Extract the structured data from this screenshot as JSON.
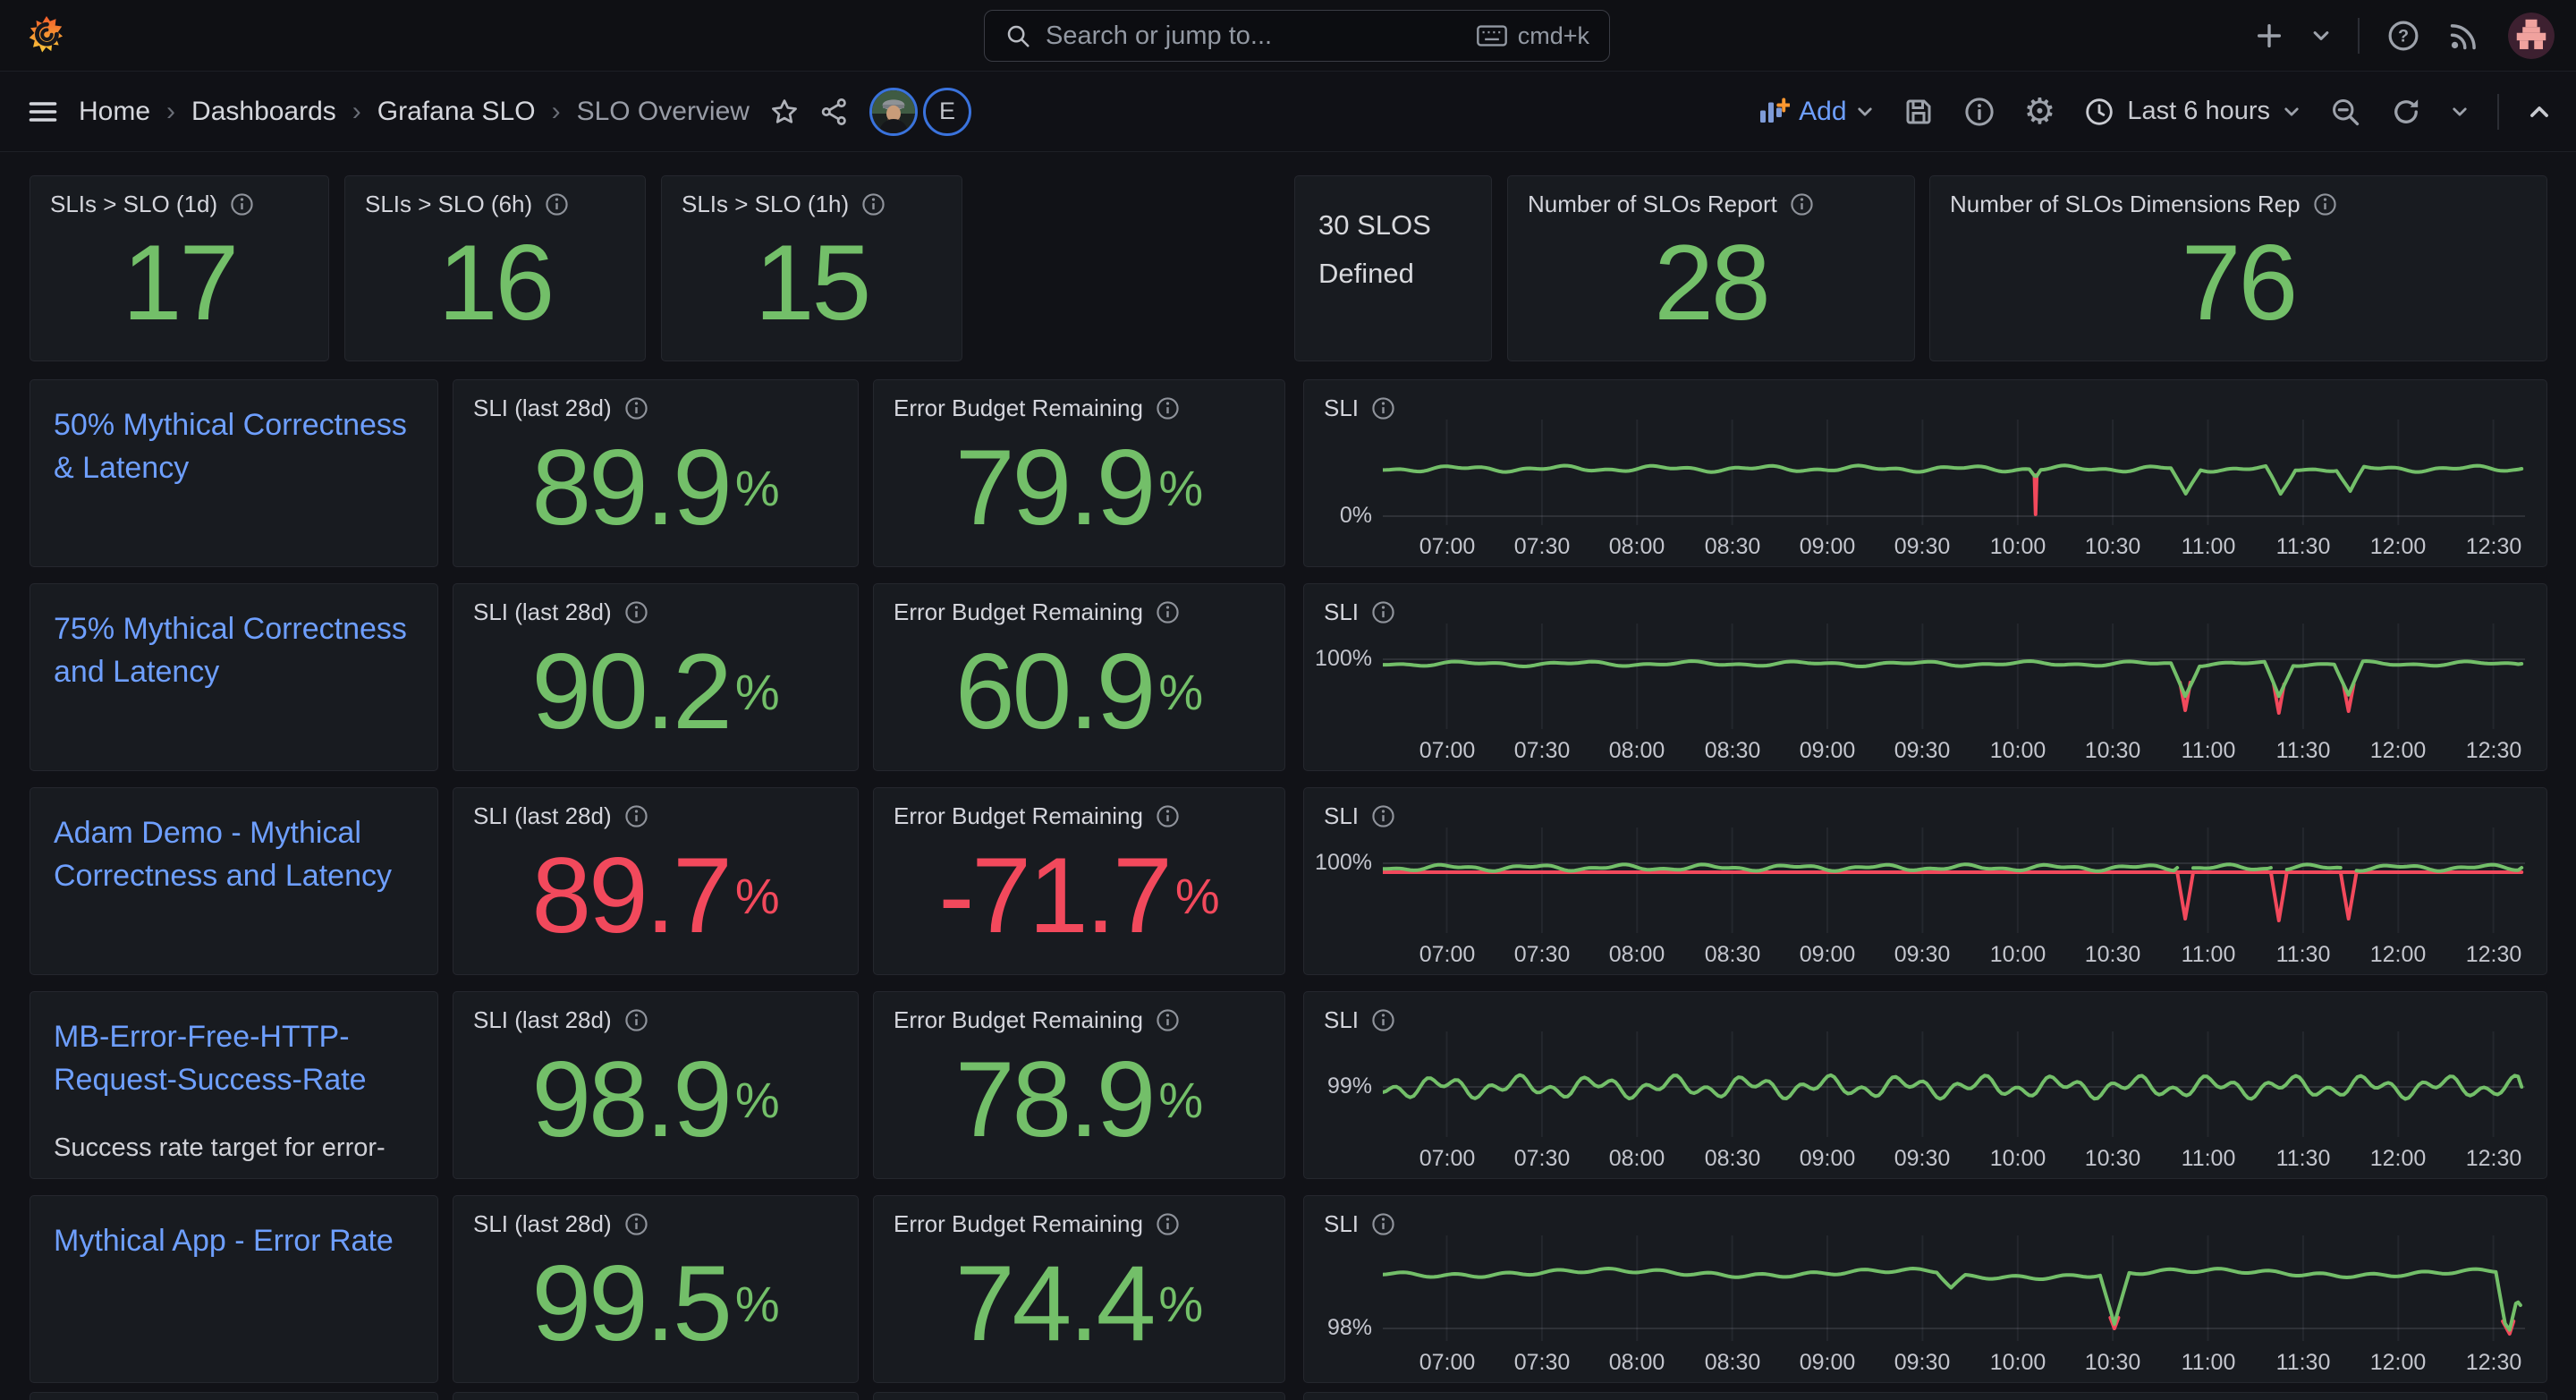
{
  "colors": {
    "green": "#73BF69",
    "red": "#F2495C",
    "link": "#6E9FFF",
    "accent_orange": "#FF9830",
    "accent_blue": "#5794F2"
  },
  "topbar": {
    "search_placeholder": "Search or jump to...",
    "search_shortcut": "cmd+k"
  },
  "breadcrumb": {
    "items": [
      "Home",
      "Dashboards",
      "Grafana SLO",
      "SLO Overview"
    ],
    "sep": "›"
  },
  "toolbar": {
    "add_label": "Add",
    "time_range": "Last 6 hours",
    "profile_initial": "E"
  },
  "labels": {
    "sli_28d": "SLI (last 28d)",
    "error_budget": "Error Budget Remaining",
    "sli": "SLI",
    "percent": "%"
  },
  "stats": {
    "slo_1d": {
      "title": "SLIs > SLO (1d)",
      "value": "17"
    },
    "slo_6h": {
      "title": "SLIs > SLO (6h)",
      "value": "16"
    },
    "slo_1h": {
      "title": "SLIs > SLO (1h)",
      "value": "15"
    },
    "defined": {
      "text": "30 SLOS Defined"
    },
    "report": {
      "title": "Number of SLOs Report",
      "value": "28"
    },
    "dimensions": {
      "title": "Number of SLOs Dimensions Rep",
      "value": "76"
    }
  },
  "chart_common": {
    "xticks": [
      "07:00",
      "07:30",
      "08:00",
      "08:30",
      "09:00",
      "09:30",
      "10:00",
      "10:30",
      "11:00",
      "11:30",
      "12:00",
      "12:30"
    ],
    "xstart": 0.056,
    "xstep": 0.0833
  },
  "rows": [
    {
      "name": "50% Mythical Correctness & Latency",
      "sli": "89.9",
      "sli_color": "#73BF69",
      "eb": "79.9",
      "eb_color": "#73BF69",
      "chart": {
        "y_label": "0%",
        "grid_y": 108,
        "green": [
          [
            [
              0,
              55
            ],
            [
              0.566,
              55
            ],
            [
              0.5705,
              62
            ],
            [
              0.5725,
              62
            ],
            [
              0.576,
              55
            ],
            [
              0.69,
              55
            ],
            [
              0.703,
              85
            ],
            [
              0.716,
              55
            ],
            [
              0.773,
              55
            ],
            [
              0.786,
              85
            ],
            [
              0.799,
              55
            ],
            [
              0.835,
              55
            ],
            [
              0.847,
              82
            ],
            [
              0.859,
              55
            ],
            [
              0.997,
              55
            ]
          ]
        ],
        "red": [
          [
            [
              0.5705,
              62
            ],
            [
              0.5715,
              106
            ],
            [
              0.5725,
              62
            ]
          ]
        ],
        "noise": {
          "a1": 2.2,
          "f1": 71,
          "a2": 1.5,
          "f2": 173
        }
      }
    },
    {
      "name": "75% Mythical Correctness and Latency",
      "sli": "90.2",
      "sli_color": "#73BF69",
      "eb": "60.9",
      "eb_color": "#73BF69",
      "chart": {
        "y_label": "100%",
        "grid_y": 40,
        "green": [
          [
            [
              0,
              45
            ],
            [
              0.69,
              45
            ],
            [
              0.7025,
              80
            ],
            [
              0.715,
              45
            ],
            [
              0.772,
              45
            ],
            [
              0.7845,
              82
            ],
            [
              0.797,
              45
            ],
            [
              0.833,
              45
            ],
            [
              0.8455,
              80
            ],
            [
              0.858,
              45
            ],
            [
              0.997,
              45
            ]
          ]
        ],
        "red": [
          [
            [
              0.698,
              66
            ],
            [
              0.7025,
              97
            ],
            [
              0.707,
              66
            ]
          ],
          [
            [
              0.78,
              68
            ],
            [
              0.7845,
              100
            ],
            [
              0.789,
              68
            ]
          ],
          [
            [
              0.841,
              68
            ],
            [
              0.8455,
              98
            ],
            [
              0.85,
              68
            ]
          ]
        ],
        "noise": {
          "a1": 1.8,
          "f1": 64,
          "a2": 1.2,
          "f2": 149
        }
      }
    },
    {
      "name": "Adam Demo - Mythical Correctness and Latency",
      "sli": "89.7",
      "sli_color": "#F2495C",
      "eb": "-71.7",
      "eb_color": "#F2495C",
      "chart": {
        "y_label": "100%",
        "grid_y": 40,
        "green": [
          [
            [
              0,
              45
            ],
            [
              0.6955,
              45
            ]
          ],
          [
            [
              0.7095,
              45
            ],
            [
              0.7775,
              45
            ]
          ],
          [
            [
              0.7915,
              45
            ],
            [
              0.8385,
              45
            ]
          ],
          [
            [
              0.8525,
              45
            ],
            [
              0.997,
              45
            ]
          ]
        ],
        "red": [
          [
            [
              0,
              50
            ],
            [
              0.997,
              50
            ]
          ],
          [
            [
              0.6955,
              50
            ],
            [
              0.7025,
              102
            ],
            [
              0.7095,
              50
            ]
          ],
          [
            [
              0.7775,
              50
            ],
            [
              0.7845,
              104
            ],
            [
              0.7915,
              50
            ]
          ],
          [
            [
              0.8385,
              50
            ],
            [
              0.8455,
              102
            ],
            [
              0.8525,
              50
            ]
          ]
        ],
        "noise": {
          "a1": 2.4,
          "f1": 83,
          "a2": 1.4,
          "f2": 190
        }
      }
    },
    {
      "name": "MB-Error-Free-HTTP-Request-Success-Rate",
      "description": "Success rate target for error-free HTTP requests in the",
      "sli": "98.9",
      "sli_color": "#73BF69",
      "eb": "78.9",
      "eb_color": "#73BF69",
      "chart": {
        "y_label": "99%",
        "grid_y": 62,
        "green": [
          [
            [
              0,
              62
            ],
            [
              0.997,
              62
            ]
          ]
        ],
        "red": [],
        "noise": {
          "a1": 7,
          "f1": 93,
          "a2": 6.5,
          "f2": 231
        }
      }
    },
    {
      "name": "Mythical App - Error Rate",
      "sli": "99.5",
      "sli_color": "#73BF69",
      "eb": "74.4",
      "eb_color": "#73BF69",
      "chart": {
        "y_label": "98%",
        "grid_y": 104,
        "green": [
          [
            [
              0,
              42
            ],
            [
              0.485,
              42
            ],
            [
              0.4975,
              60
            ],
            [
              0.51,
              47
            ],
            [
              0.628,
              42
            ],
            [
              0.6405,
              100
            ],
            [
              0.6535,
              42
            ],
            [
              0.966,
              42
            ],
            [
              0.9745,
              42
            ],
            [
              0.9825,
              100
            ],
            [
              0.9865,
              108
            ],
            [
              0.992,
              80
            ],
            [
              0.996,
              78
            ]
          ]
        ],
        "red": [
          [
            [
              0.637,
              92
            ],
            [
              0.6405,
              104
            ],
            [
              0.644,
              92
            ]
          ],
          [
            [
              0.9805,
              96
            ],
            [
              0.9865,
              110
            ],
            [
              0.99,
              96
            ]
          ]
        ],
        "noise": {
          "a1": 3,
          "f1": 24,
          "a2": 2,
          "f2": 141
        }
      }
    }
  ]
}
